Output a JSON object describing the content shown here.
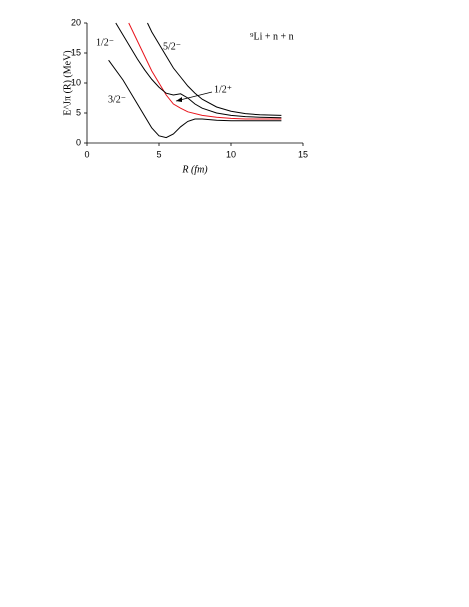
{
  "chart_data": {
    "type": "line",
    "x_label": "R (fm)",
    "y_label": "E^Jπ (R) (MeV)",
    "annotation": "⁹Li + n + n",
    "xlim": [
      0,
      15
    ],
    "xticks": [
      0,
      5,
      10,
      15
    ],
    "ylim": [
      0,
      20
    ],
    "yticks": [
      0,
      5,
      10,
      15,
      20
    ],
    "series": [
      {
        "name": "3/2⁻",
        "color": "#000000",
        "x": [
          1.5,
          2.5,
          3.5,
          4.5,
          5.0,
          5.5,
          6.0,
          6.5,
          7.0,
          7.5,
          8.0,
          9.0,
          10.0,
          11.0,
          12.0,
          13.5
        ],
        "values": [
          13.8,
          10.5,
          6.5,
          2.5,
          1.2,
          0.9,
          1.5,
          2.7,
          3.6,
          4.0,
          4.0,
          3.8,
          3.7,
          3.7,
          3.7,
          3.7
        ]
      },
      {
        "name": "1/2⁺",
        "color": "#e8141c",
        "x": [
          2.9,
          3.5,
          4.0,
          4.5,
          5.0,
          5.5,
          6.0,
          6.5,
          7.0,
          8.0,
          9.0,
          10.0,
          11.0,
          12.0,
          13.5
        ],
        "values": [
          20,
          17,
          14.5,
          12,
          10,
          8,
          6.5,
          5.8,
          5.2,
          4.6,
          4.3,
          4.1,
          4.0,
          4.0,
          4.0
        ]
      },
      {
        "name": "1/2⁻",
        "color": "#000000",
        "x": [
          2.0,
          2.5,
          3.0,
          3.5,
          4.0,
          4.5,
          5.0,
          5.5,
          6.0,
          6.5,
          7.0,
          7.5,
          8.0,
          9.0,
          10.0,
          11.0,
          12.0,
          13.5
        ],
        "values": [
          20,
          18,
          16,
          14,
          12.2,
          10.6,
          9.3,
          8.3,
          8.0,
          8.2,
          7.5,
          6.5,
          5.8,
          5.0,
          4.6,
          4.4,
          4.3,
          4.2
        ]
      },
      {
        "name": "5/2⁻",
        "color": "#000000",
        "x": [
          4.2,
          4.5,
          5.0,
          5.5,
          6.0,
          6.5,
          7.0,
          7.5,
          8.0,
          9.0,
          10.0,
          11.0,
          12.0,
          13.5
        ],
        "values": [
          20,
          18.5,
          16.5,
          14.5,
          12.5,
          11,
          9.5,
          8.3,
          7.3,
          6.0,
          5.3,
          4.9,
          4.7,
          4.6
        ]
      }
    ]
  }
}
